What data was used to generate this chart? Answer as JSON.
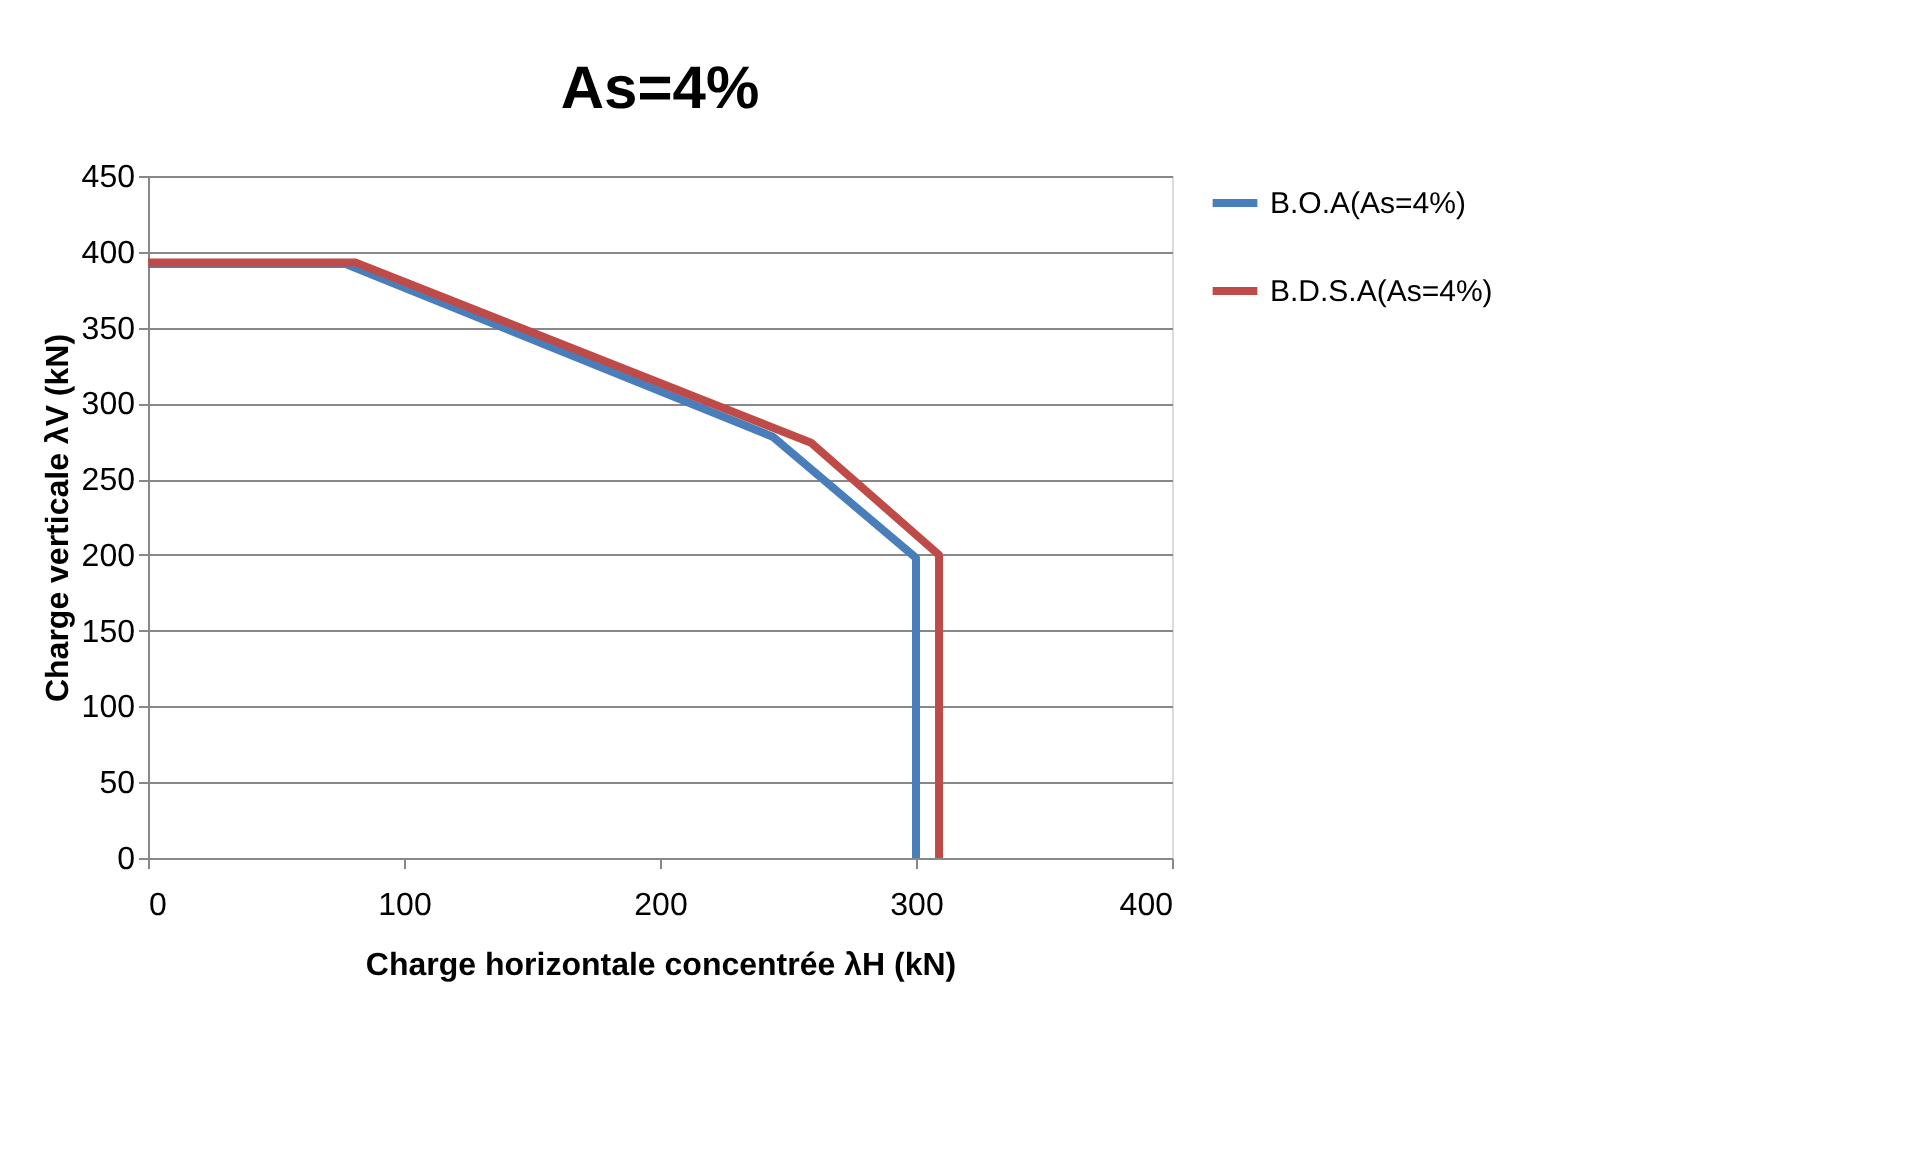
{
  "chart_data": {
    "type": "line",
    "title": "As=4%",
    "xlabel": "Charge horizontale concentrée  λH (kN)",
    "ylabel": "Charge verticale  λV (kN)",
    "xlim": [
      0,
      400
    ],
    "xticks": [
      0,
      100,
      200,
      300,
      400
    ],
    "ylim": [
      0,
      450
    ],
    "yticks": [
      0,
      50,
      100,
      150,
      200,
      250,
      300,
      350,
      400,
      450
    ],
    "grid": "y",
    "legend": "right",
    "marker": "none",
    "line_style": "solid",
    "series": [
      {
        "name": "B.O.A(As=4%)",
        "color": "#4a7ebb",
        "x": [
          0,
          77,
          244,
          300,
          300
        ],
        "values": [
          392,
          392,
          278,
          198,
          0
        ]
      },
      {
        "name": "B.D.S.A(As=4%)",
        "color": "#be4b48",
        "x": [
          0,
          81,
          259,
          309,
          309
        ],
        "values": [
          393,
          393,
          274,
          200,
          0
        ]
      }
    ]
  }
}
